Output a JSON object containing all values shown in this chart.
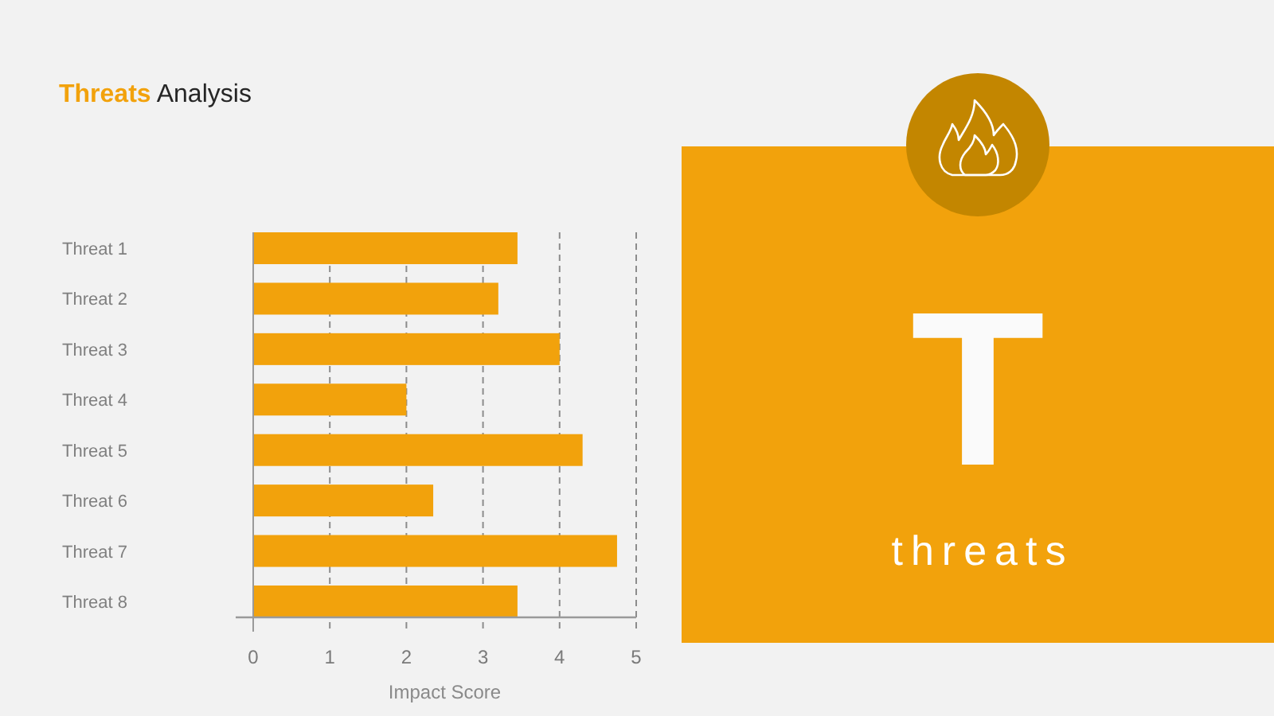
{
  "chart_data": [
    {
      "type": "bar",
      "title": "Threats Analysis",
      "orientation": "horizontal",
      "categories": [
        "Threat 1",
        "Threat 2",
        "Threat 3",
        "Threat 4",
        "Threat 5",
        "Threat 6",
        "Threat 7",
        "Threat 8"
      ],
      "values": [
        3.45,
        3.2,
        4,
        2,
        4.3,
        2.35,
        4.75,
        3.45
      ],
      "color": "#f2a20c",
      "xlabel": "Impact Score",
      "xlim": [
        0,
        5
      ],
      "xticks": [
        0,
        1,
        2,
        3,
        4,
        5
      ],
      "grid": "x"
    },
    {
      "type": "other",
      "annotations": [
        "T",
        "threats"
      ]
    }
  ]
}
